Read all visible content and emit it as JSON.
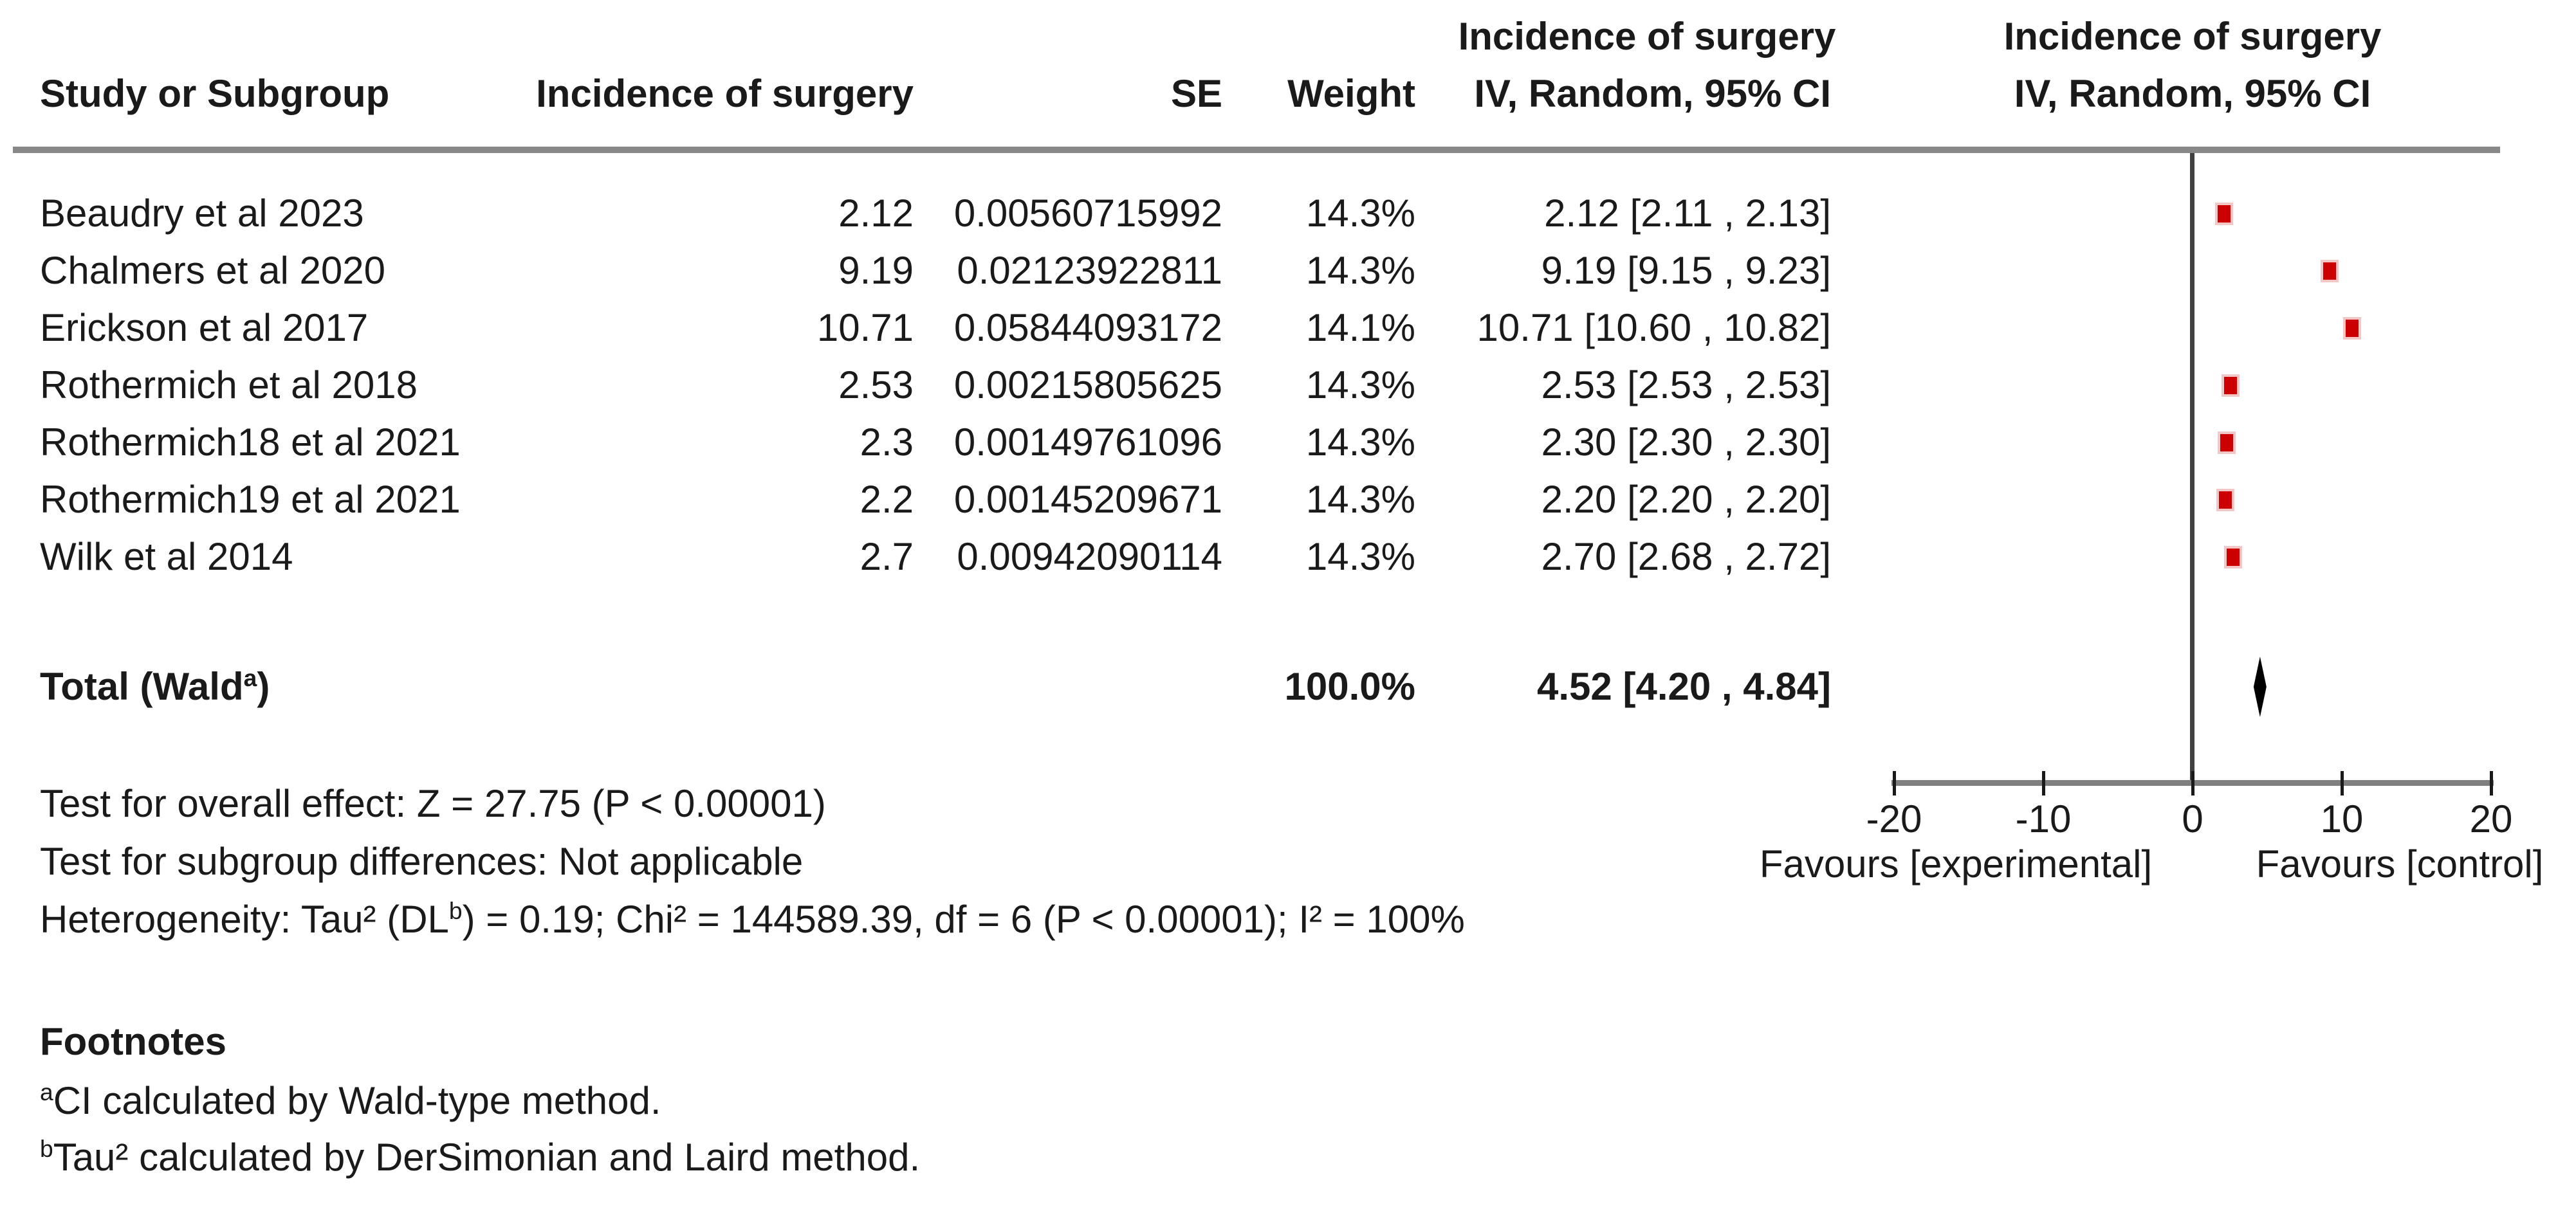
{
  "header": {
    "group_effect_label": "Incidence of surgery",
    "col_study": "Study or Subgroup",
    "col_effect": "Incidence of surgery",
    "col_se": "SE",
    "col_weight": "Weight",
    "col_ci": "IV, Random, 95% CI",
    "plot_title_line1": "Incidence of surgery",
    "plot_title_line2": "IV, Random, 95% CI"
  },
  "rows": [
    {
      "study": "Beaudry et al 2023",
      "effect": "2.12",
      "se": "0.00560715992",
      "weight": "14.3%",
      "ci": "2.12 [2.11 , 2.13]"
    },
    {
      "study": "Chalmers et al 2020",
      "effect": "9.19",
      "se": "0.02123922811",
      "weight": "14.3%",
      "ci": "9.19 [9.15 , 9.23]"
    },
    {
      "study": "Erickson et al 2017",
      "effect": "10.71",
      "se": "0.05844093172",
      "weight": "14.1%",
      "ci": "10.71 [10.60 , 10.82]"
    },
    {
      "study": "Rothermich et al 2018",
      "effect": "2.53",
      "se": "0.00215805625",
      "weight": "14.3%",
      "ci": "2.53 [2.53 , 2.53]"
    },
    {
      "study": "Rothermich18 et al 2021",
      "effect": "2.3",
      "se": "0.00149761096",
      "weight": "14.3%",
      "ci": "2.30 [2.30 , 2.30]"
    },
    {
      "study": "Rothermich19 et al 2021",
      "effect": "2.2",
      "se": "0.00145209671",
      "weight": "14.3%",
      "ci": "2.20 [2.20 , 2.20]"
    },
    {
      "study": "Wilk et al 2014",
      "effect": "2.7",
      "se": "0.00942090114",
      "weight": "14.3%",
      "ci": "2.70 [2.68 , 2.72]"
    }
  ],
  "total": {
    "label_pre": "Total (Wald",
    "label_sup": "a",
    "label_post": ")",
    "weight": "100.0%",
    "ci": "4.52 [4.20 , 4.84]"
  },
  "stats": {
    "overall_effect": "Test for overall effect: Z = 27.75 (P < 0.00001)",
    "subgroup_diff": "Test for subgroup differences: Not applicable",
    "heterogeneity_pre": "Heterogeneity: Tau² (DL",
    "heterogeneity_sup": "b",
    "heterogeneity_post": ") = 0.19; Chi² = 144589.39, df = 6 (P < 0.00001); I² = 100%"
  },
  "axis": {
    "ticks": [
      "-20",
      "-10",
      "0",
      "10",
      "20"
    ],
    "favours_left": "Favours [experimental]",
    "favours_right": "Favours [control]"
  },
  "footnotes": {
    "title": "Footnotes",
    "a_sup": "a",
    "a_text": "CI calculated by Wald-type method.",
    "b_sup": "b",
    "b_text": "Tau² calculated by DerSimonian and Laird method."
  },
  "colors": {
    "marker": "#CC0000",
    "diamond": "#000000",
    "rule": "#888888",
    "axis_line": "#808080",
    "zero_line": "#404040",
    "text": "#1a1a1a"
  },
  "chart_data": {
    "type": "forest",
    "effect_measure": "Incidence of surgery",
    "model": "IV, Random, 95% CI",
    "studies": [
      {
        "name": "Beaudry et al 2023",
        "effect": 2.12,
        "se": 0.00560715992,
        "weight_pct": 14.3,
        "ci": [
          2.11,
          2.13
        ]
      },
      {
        "name": "Chalmers et al 2020",
        "effect": 9.19,
        "se": 0.02123922811,
        "weight_pct": 14.3,
        "ci": [
          9.15,
          9.23
        ]
      },
      {
        "name": "Erickson et al 2017",
        "effect": 10.71,
        "se": 0.05844093172,
        "weight_pct": 14.1,
        "ci": [
          10.6,
          10.82
        ]
      },
      {
        "name": "Rothermich et al 2018",
        "effect": 2.53,
        "se": 0.00215805625,
        "weight_pct": 14.3,
        "ci": [
          2.53,
          2.53
        ]
      },
      {
        "name": "Rothermich18 et al 2021",
        "effect": 2.3,
        "se": 0.00149761096,
        "weight_pct": 14.3,
        "ci": [
          2.3,
          2.3
        ]
      },
      {
        "name": "Rothermich19 et al 2021",
        "effect": 2.2,
        "se": 0.00145209671,
        "weight_pct": 14.3,
        "ci": [
          2.2,
          2.2
        ]
      },
      {
        "name": "Wilk et al 2014",
        "effect": 2.7,
        "se": 0.00942090114,
        "weight_pct": 14.3,
        "ci": [
          2.68,
          2.72
        ]
      }
    ],
    "total": {
      "label": "Total (Wald a)",
      "effect": 4.52,
      "ci": [
        4.2,
        4.84
      ],
      "weight_pct": 100.0
    },
    "xlim": [
      -20,
      20
    ],
    "tick_values": [
      -20,
      -10,
      0,
      10,
      20
    ],
    "tests": {
      "z": 27.75,
      "p_overall": "< 0.00001",
      "tau2": 0.19,
      "chi2": 144589.39,
      "df": 6,
      "p_het": "< 0.00001",
      "i2_pct": 100
    }
  }
}
